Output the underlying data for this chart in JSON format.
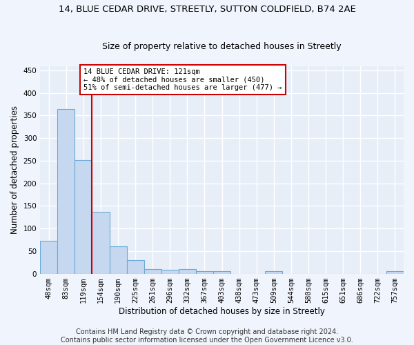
{
  "title_line1": "14, BLUE CEDAR DRIVE, STREETLY, SUTTON COLDFIELD, B74 2AE",
  "title_line2": "Size of property relative to detached houses in Streetly",
  "xlabel": "Distribution of detached houses by size in Streetly",
  "ylabel": "Number of detached properties",
  "categories": [
    "48sqm",
    "83sqm",
    "119sqm",
    "154sqm",
    "190sqm",
    "225sqm",
    "261sqm",
    "296sqm",
    "332sqm",
    "367sqm",
    "403sqm",
    "438sqm",
    "473sqm",
    "509sqm",
    "544sqm",
    "580sqm",
    "615sqm",
    "651sqm",
    "686sqm",
    "722sqm",
    "757sqm"
  ],
  "values": [
    72,
    365,
    252,
    137,
    60,
    30,
    10,
    8,
    10,
    5,
    6,
    0,
    0,
    5,
    0,
    0,
    0,
    0,
    0,
    0,
    5
  ],
  "bar_color": "#c5d8f0",
  "bar_edge_color": "#6aaad4",
  "vline_x": 2,
  "vline_color": "#cc0000",
  "annotation_text": "14 BLUE CEDAR DRIVE: 121sqm\n← 48% of detached houses are smaller (450)\n51% of semi-detached houses are larger (477) →",
  "annotation_box_color": "#ffffff",
  "annotation_box_edge": "#cc0000",
  "ylim": [
    0,
    460
  ],
  "yticks": [
    0,
    50,
    100,
    150,
    200,
    250,
    300,
    350,
    400,
    450
  ],
  "footer": "Contains HM Land Registry data © Crown copyright and database right 2024.\nContains public sector information licensed under the Open Government Licence v3.0.",
  "fig_bg_color": "#f0f4fc",
  "plot_bg_color": "#e8eef8",
  "grid_color": "#ffffff",
  "title_fontsize": 9.5,
  "subtitle_fontsize": 9,
  "axis_label_fontsize": 8.5,
  "tick_fontsize": 7.5,
  "annotation_fontsize": 7.5,
  "footer_fontsize": 7
}
